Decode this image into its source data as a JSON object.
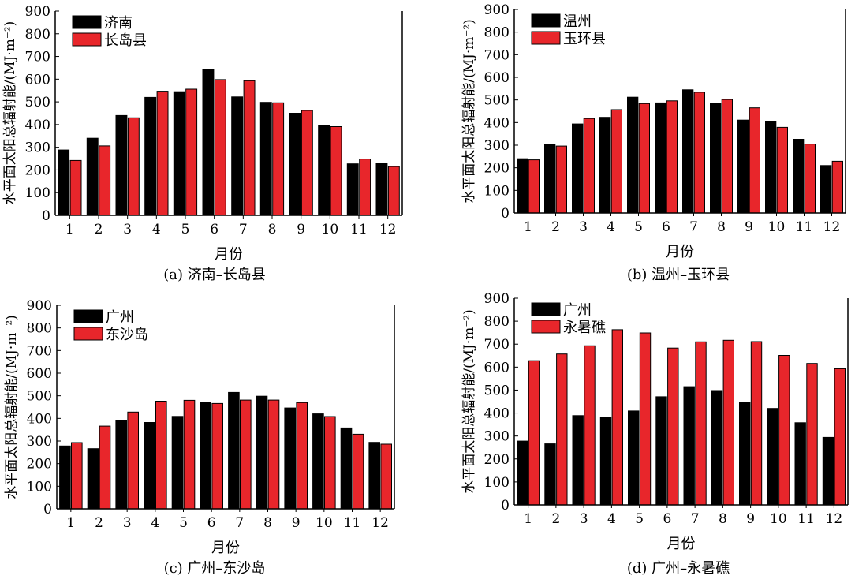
{
  "colors": {
    "series1": "#000000",
    "series2": "#e8262b",
    "axis": "#000000"
  },
  "chart_data": [
    {
      "type": "bar",
      "caption": "(a) 济南–长岛县",
      "xlabel": "月份",
      "ylabel": "水平面太阳总辐射能/(MJ·m⁻²)",
      "ylim": [
        0,
        900
      ],
      "yticks": [
        0,
        100,
        200,
        300,
        400,
        500,
        600,
        700,
        800,
        900
      ],
      "categories": [
        "1",
        "2",
        "3",
        "4",
        "5",
        "6",
        "7",
        "8",
        "9",
        "10",
        "11",
        "12"
      ],
      "legend_position": "top-left",
      "series": [
        {
          "name": "济南",
          "values": [
            288,
            340,
            440,
            520,
            545,
            643,
            522,
            498,
            450,
            398,
            227,
            228
          ]
        },
        {
          "name": "长岛县",
          "values": [
            242,
            306,
            430,
            547,
            556,
            598,
            593,
            496,
            462,
            391,
            248,
            215
          ]
        }
      ]
    },
    {
      "type": "bar",
      "caption": "(b) 温州–玉环县",
      "xlabel": "月份",
      "ylabel": "水平面太阳总辐射能/(MJ·m⁻²)",
      "ylim": [
        0,
        900
      ],
      "yticks": [
        0,
        100,
        200,
        300,
        400,
        500,
        600,
        700,
        800,
        900
      ],
      "categories": [
        "1",
        "2",
        "3",
        "4",
        "5",
        "6",
        "7",
        "8",
        "9",
        "10",
        "11",
        "12"
      ],
      "legend_position": "top-left",
      "series": [
        {
          "name": "温州",
          "values": [
            240,
            303,
            394,
            423,
            512,
            487,
            545,
            484,
            411,
            405,
            326,
            210
          ]
        },
        {
          "name": "玉环县",
          "values": [
            235,
            296,
            418,
            457,
            484,
            496,
            534,
            502,
            465,
            379,
            305,
            229
          ]
        }
      ]
    },
    {
      "type": "bar",
      "caption": "(c) 广州–东沙岛",
      "xlabel": "月份",
      "ylabel": "水平面太阳总辐射能/(MJ·m⁻²)",
      "ylim": [
        0,
        900
      ],
      "yticks": [
        0,
        100,
        200,
        300,
        400,
        500,
        600,
        700,
        800,
        900
      ],
      "categories": [
        "1",
        "2",
        "3",
        "4",
        "5",
        "6",
        "7",
        "8",
        "9",
        "10",
        "11",
        "12"
      ],
      "legend_position": "top-left",
      "series": [
        {
          "name": "广州",
          "values": [
            278,
            266,
            389,
            382,
            409,
            471,
            515,
            498,
            446,
            420,
            358,
            294
          ]
        },
        {
          "name": "东沙岛",
          "values": [
            293,
            366,
            428,
            476,
            480,
            466,
            481,
            481,
            470,
            408,
            330,
            286
          ]
        }
      ]
    },
    {
      "type": "bar",
      "caption": "(d) 广州–永暑礁",
      "xlabel": "月份",
      "ylabel": "水平面太阳总辐射能/(MJ·m⁻²)",
      "ylim": [
        0,
        900
      ],
      "yticks": [
        0,
        100,
        200,
        300,
        400,
        500,
        600,
        700,
        800,
        900
      ],
      "categories": [
        "1",
        "2",
        "3",
        "4",
        "5",
        "6",
        "7",
        "8",
        "9",
        "10",
        "11",
        "12"
      ],
      "legend_position": "top-left",
      "series": [
        {
          "name": "广州",
          "values": [
            278,
            266,
            389,
            382,
            409,
            471,
            515,
            498,
            446,
            420,
            358,
            294
          ]
        },
        {
          "name": "永暑礁",
          "values": [
            628,
            657,
            693,
            763,
            749,
            683,
            710,
            717,
            711,
            651,
            616,
            593
          ]
        }
      ]
    }
  ]
}
